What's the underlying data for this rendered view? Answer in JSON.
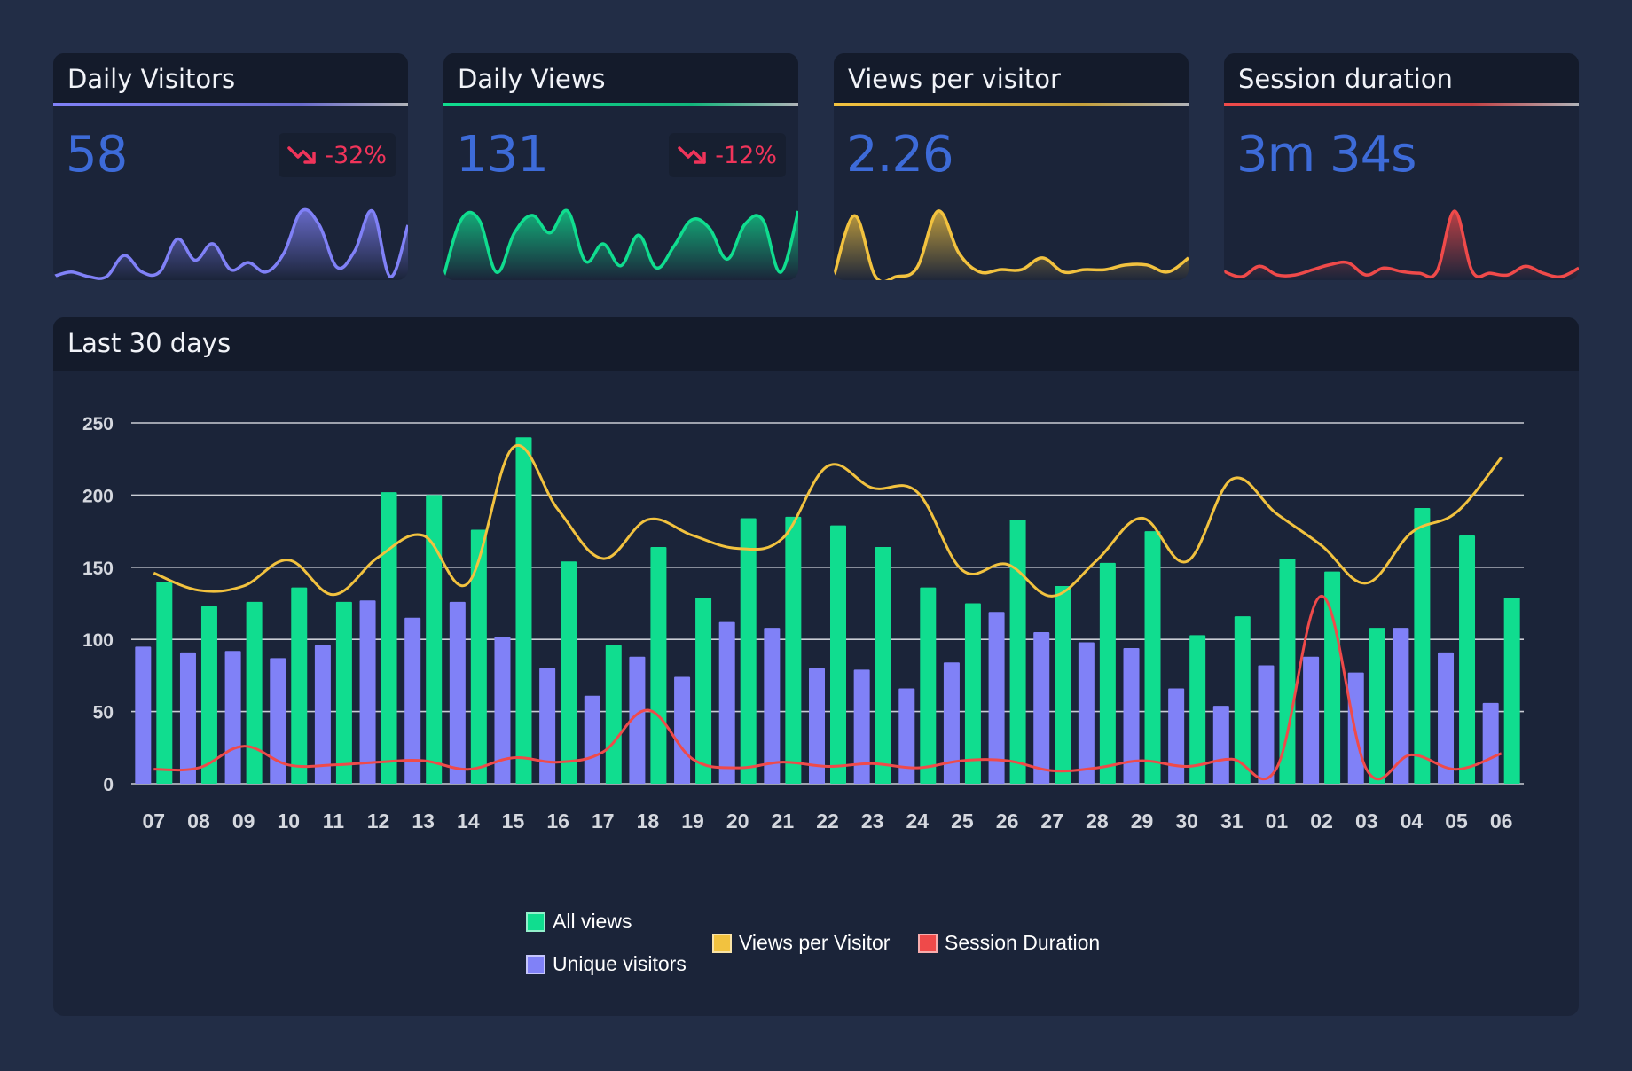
{
  "colors": {
    "visitors": "#8081f7",
    "views": "#10dd8f",
    "views_per_visitor": "#f2c23f",
    "session": "#ef4a4a",
    "value_text": "#3d6bd8",
    "trend_down": "#f0345a"
  },
  "kpis": [
    {
      "title": "Daily Visitors",
      "value": "58",
      "trend": "-32%",
      "trend_icon": "trending-down-icon",
      "color": "#8081f7",
      "spark": [
        2,
        4,
        2,
        2,
        11,
        4,
        4,
        18,
        9,
        16,
        5,
        8,
        4,
        12,
        30,
        24,
        6,
        13,
        30,
        2,
        24
      ]
    },
    {
      "title": "Daily Views",
      "value": "131",
      "trend": "-12%",
      "trend_icon": "trending-down-icon",
      "color": "#10dd8f",
      "spark": [
        0,
        26,
        26,
        2,
        20,
        28,
        20,
        30,
        7,
        15,
        5,
        19,
        4,
        14,
        26,
        22,
        8,
        24,
        26,
        2,
        30
      ]
    },
    {
      "title": "Views per visitor",
      "value": "2.26",
      "trend": "",
      "trend_icon": "",
      "color": "#f2c23f",
      "spark": [
        2,
        28,
        2,
        2,
        6,
        30,
        12,
        4,
        5,
        5,
        10,
        4,
        5,
        5,
        7,
        7,
        4,
        10
      ]
    },
    {
      "title": "Session duration",
      "value": "3m 34s",
      "trend": "",
      "trend_icon": "",
      "color": "#ef4a4a",
      "spark": [
        5,
        2,
        8,
        3,
        3,
        6,
        9,
        10,
        3,
        7,
        5,
        4,
        5,
        40,
        5,
        4,
        3,
        8,
        4,
        2,
        7
      ]
    }
  ],
  "chart": {
    "title": "Last 30 days"
  },
  "chart_data": {
    "type": "bar",
    "categories": [
      "07",
      "08",
      "09",
      "10",
      "11",
      "12",
      "13",
      "14",
      "15",
      "16",
      "17",
      "18",
      "19",
      "20",
      "21",
      "22",
      "23",
      "24",
      "25",
      "26",
      "27",
      "28",
      "29",
      "30",
      "31",
      "01",
      "02",
      "03",
      "04",
      "05",
      "06"
    ],
    "ylim": [
      0,
      250
    ],
    "yticks": [
      0,
      50,
      100,
      150,
      200,
      250
    ],
    "series": [
      {
        "name": "Unique visitors",
        "type": "bar",
        "values": [
          95,
          91,
          92,
          87,
          96,
          127,
          115,
          126,
          102,
          80,
          61,
          88,
          74,
          112,
          108,
          80,
          79,
          66,
          84,
          119,
          105,
          98,
          94,
          66,
          54,
          82,
          88,
          77,
          108,
          91,
          56
        ]
      },
      {
        "name": "All views",
        "type": "bar",
        "values": [
          140,
          123,
          126,
          136,
          126,
          202,
          200,
          176,
          240,
          154,
          96,
          164,
          129,
          184,
          185,
          179,
          164,
          136,
          125,
          183,
          137,
          153,
          175,
          103,
          116,
          156,
          147,
          108,
          191,
          172,
          129
        ]
      },
      {
        "name": "Views per Visitor",
        "type": "line",
        "values": [
          146,
          134,
          137,
          155,
          131,
          157,
          172,
          139,
          233,
          190,
          156,
          183,
          172,
          163,
          170,
          220,
          205,
          202,
          148,
          152,
          130,
          155,
          184,
          154,
          211,
          187,
          165,
          139,
          174,
          188,
          226
        ]
      },
      {
        "name": "Session Duration",
        "type": "line",
        "values": [
          10,
          11,
          26,
          13,
          13,
          15,
          16,
          10,
          18,
          15,
          22,
          51,
          17,
          11,
          15,
          12,
          14,
          11,
          16,
          16,
          9,
          11,
          16,
          12,
          17,
          11,
          130,
          10,
          20,
          10,
          21
        ]
      }
    ],
    "legend": {
      "all_views": "All views",
      "unique_visitors": "Unique visitors",
      "views_per_visitor": "Views per Visitor",
      "session_duration": "Session Duration"
    },
    "legend_position": "bottom"
  }
}
